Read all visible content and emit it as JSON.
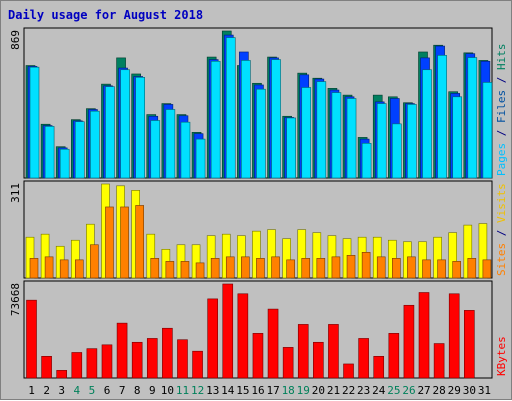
{
  "chart_data": {
    "type": "bar",
    "title": "Daily usage for August 2018",
    "days": [
      "1",
      "2",
      "3",
      "4",
      "5",
      "6",
      "7",
      "8",
      "9",
      "10",
      "11",
      "12",
      "13",
      "14",
      "15",
      "16",
      "17",
      "18",
      "19",
      "20",
      "21",
      "22",
      "23",
      "24",
      "25",
      "26",
      "27",
      "28",
      "29",
      "30",
      "31"
    ],
    "weekend_days": [
      "4",
      "5",
      "11",
      "12",
      "18",
      "19",
      "25",
      "26"
    ],
    "panels": [
      {
        "max_label": "869",
        "ymax": 869,
        "side_labels": [
          {
            "text": "Pages",
            "color": "#00c0ff"
          },
          {
            "text": " / ",
            "color": "#000080"
          },
          {
            "text": "Files",
            "color": "#0050a0"
          },
          {
            "text": " / ",
            "color": "#000080"
          },
          {
            "text": "Hits",
            "color": "#008060"
          }
        ],
        "series": [
          {
            "name": "Hits",
            "color": "#008060",
            "values": [
              665,
              318,
              185,
              345,
              410,
              555,
              710,
              615,
              375,
              440,
              375,
              270,
              715,
              869,
              665,
              560,
              715,
              365,
              620,
              590,
              530,
              490,
              240,
              490,
              480,
              445,
              745,
              785,
              510,
              740,
              695
            ]
          },
          {
            "name": "Files",
            "color": "#0040ff",
            "values": [
              660,
              310,
              178,
              338,
              405,
              545,
              650,
              600,
              365,
              435,
              368,
              262,
              700,
              845,
              745,
              550,
              710,
              358,
              610,
              585,
              520,
              480,
              230,
              450,
              470,
              440,
              710,
              780,
              500,
              735,
              690
            ]
          },
          {
            "name": "Pages",
            "color": "#00e0ff",
            "values": [
              655,
              305,
              170,
              333,
              395,
              540,
              640,
              595,
              340,
              405,
              330,
              230,
              690,
              830,
              695,
              525,
              700,
              355,
              535,
              570,
              505,
              470,
              205,
              440,
              320,
              435,
              640,
              725,
              480,
              712,
              565
            ]
          }
        ]
      },
      {
        "max_label": "311",
        "ymax": 311,
        "side_labels": [
          {
            "text": "Sites",
            "color": "#ff8000"
          },
          {
            "text": " / ",
            "color": "#000080"
          },
          {
            "text": "Visits",
            "color": "#f0c000"
          }
        ],
        "series": [
          {
            "name": "Visits",
            "color": "#ffff00",
            "values": [
              135,
              145,
              105,
              125,
              178,
              311,
              305,
              290,
              145,
              95,
              110,
              110,
              140,
              145,
              140,
              155,
              160,
              130,
              160,
              150,
              140,
              130,
              135,
              135,
              125,
              120,
              120,
              135,
              150,
              175,
              180
            ]
          },
          {
            "name": "Sites",
            "color": "#ff8000",
            "values": [
              65,
              70,
              60,
              60,
              110,
              235,
              235,
              240,
              65,
              55,
              55,
              50,
              65,
              70,
              70,
              65,
              70,
              60,
              65,
              65,
              70,
              75,
              85,
              70,
              65,
              70,
              60,
              60,
              55,
              65,
              60
            ]
          }
        ]
      },
      {
        "max_label": "73668",
        "ymax": 73668,
        "side_labels": [
          {
            "text": "KBytes",
            "color": "#ff0000"
          }
        ],
        "series": [
          {
            "name": "KBytes",
            "color": "#ff0000",
            "values": [
              61000,
              17000,
              6000,
              20000,
              23000,
              26000,
              43000,
              28000,
              31000,
              39000,
              30000,
              21000,
              62000,
              73668,
              66000,
              35000,
              54000,
              24000,
              42000,
              28000,
              42000,
              11000,
              31000,
              17000,
              35000,
              57000,
              67000,
              27000,
              66000,
              53000,
              0
            ]
          }
        ]
      }
    ]
  }
}
